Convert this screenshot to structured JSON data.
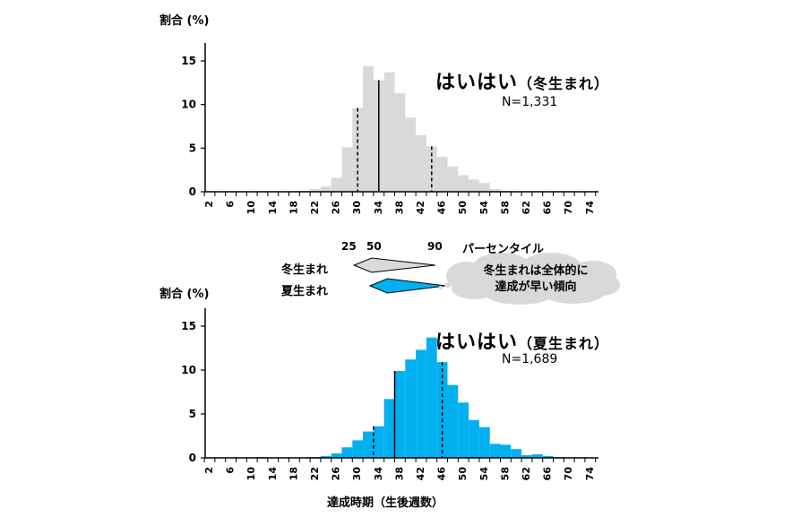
{
  "colors": {
    "winter": "#d9d9d9",
    "summer": "#00b0f0",
    "axis": "#000000",
    "cloud": "#d9d9d9"
  },
  "chart_data": [
    {
      "type": "bar",
      "ylabel": "割合 (%)",
      "title": "はいはい",
      "subtitle": "（冬生まれ）",
      "n_label": "N=1,331",
      "ylim": [
        0,
        15
      ],
      "yticks": [
        0,
        5,
        10,
        15
      ],
      "xticks": [
        "2",
        "6",
        "10",
        "14",
        "18",
        "22",
        "26",
        "30",
        "34",
        "38",
        "42",
        "46",
        "50",
        "54",
        "58",
        "62",
        "66",
        "70",
        "74"
      ],
      "bin_start": 2,
      "bin_width": 2,
      "values": [
        0,
        0,
        0,
        0,
        0,
        0,
        0,
        0,
        0,
        0.1,
        0.3,
        0.6,
        1.6,
        5.1,
        9.6,
        14.4,
        12.8,
        13.7,
        11.3,
        8.5,
        6.5,
        5.2,
        4.0,
        2.9,
        1.9,
        1.4,
        1.0,
        0.3,
        0.1,
        0.05,
        0,
        0,
        0,
        0,
        0,
        0,
        0
      ],
      "percentile_markers": {
        "p25": 30,
        "p50": 34,
        "p90": 44
      }
    },
    {
      "type": "bar",
      "ylabel": "割合 (%)",
      "title": "はいはい",
      "subtitle": "（夏生まれ）",
      "n_label": "N=1,689",
      "xlabel": "達成時期（生後週数）",
      "ylim": [
        0,
        15
      ],
      "yticks": [
        0,
        5,
        10,
        15
      ],
      "xticks": [
        "2",
        "6",
        "10",
        "14",
        "18",
        "22",
        "26",
        "30",
        "34",
        "38",
        "42",
        "46",
        "50",
        "54",
        "58",
        "62",
        "66",
        "70",
        "74"
      ],
      "bin_start": 2,
      "bin_width": 2,
      "values": [
        0,
        0,
        0,
        0,
        0,
        0.1,
        0,
        0,
        0,
        0,
        0.1,
        0.2,
        0.5,
        1.2,
        2.0,
        3.0,
        3.6,
        6.7,
        9.9,
        11.2,
        12.3,
        13.7,
        10.9,
        8.3,
        6.3,
        4.3,
        3.5,
        1.6,
        1.5,
        1.0,
        0.3,
        0.4,
        0.2,
        0.1,
        0,
        0,
        0
      ],
      "percentile_markers": {
        "p25": 33,
        "p50": 37,
        "p90": 46
      }
    }
  ],
  "percentile_legend": {
    "labels": [
      "25",
      "50",
      "90"
    ],
    "caption": "パーセンタイル",
    "groups": [
      "冬生まれ",
      "夏生まれ"
    ],
    "note_lines": [
      "冬生まれは全体的に",
      "達成が早い傾向"
    ]
  }
}
